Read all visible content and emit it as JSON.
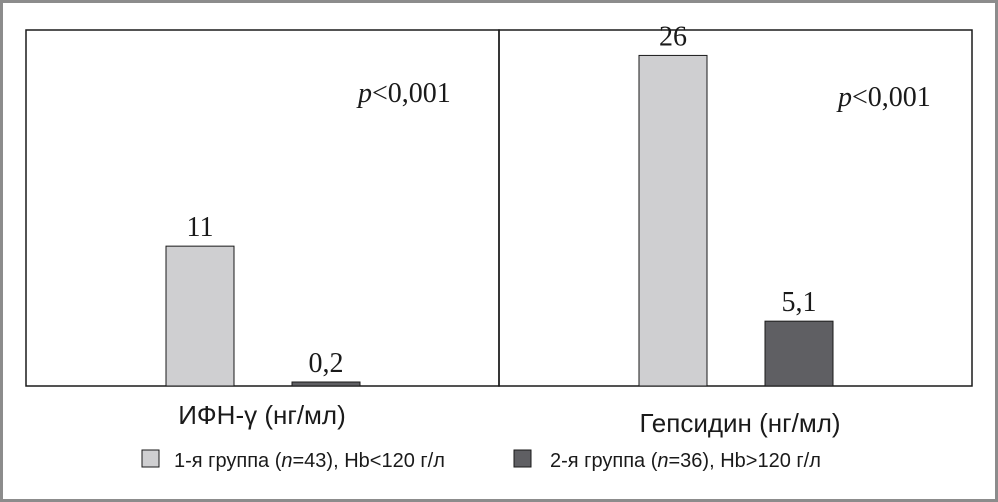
{
  "colors": {
    "group1": "#cfcfd1",
    "group2": "#5f5f63",
    "border": "#8c8c8c",
    "axis": "#1a1a1a"
  },
  "chart_data": [
    {
      "type": "bar",
      "title": "",
      "xlabel": "ИФН-γ (нг/мл)",
      "ylabel": "",
      "ylim": [
        0,
        28
      ],
      "annotation": {
        "text_italic": "p",
        "text_rest": "<0,001"
      },
      "series": [
        {
          "name": "1-я группа (n=43), Hb<120 г/л",
          "values": [
            11
          ],
          "labels": [
            "11"
          ]
        },
        {
          "name": "2-я группа (n=36), Hb>120 г/л",
          "values": [
            0.2
          ],
          "labels": [
            "0,2"
          ]
        }
      ]
    },
    {
      "type": "bar",
      "title": "",
      "xlabel": "Гепсидин (нг/мл)",
      "ylabel": "",
      "ylim": [
        0,
        28
      ],
      "annotation": {
        "text_italic": "p",
        "text_rest": "<0,001"
      },
      "series": [
        {
          "name": "1-я группа (n=43), Hb<120 г/л",
          "values": [
            26
          ],
          "labels": [
            "26"
          ]
        },
        {
          "name": "2-я группа (n=36), Hb>120 г/л",
          "values": [
            5.1
          ],
          "labels": [
            "5,1"
          ]
        }
      ]
    }
  ],
  "legend": {
    "items": [
      {
        "pre": "1-я группа (",
        "n_italic": "n",
        "post": "=43), Hb<120 г/л"
      },
      {
        "pre": "2-я группа (",
        "n_italic": "n",
        "post": "=36), Hb>120 г/л"
      }
    ]
  }
}
